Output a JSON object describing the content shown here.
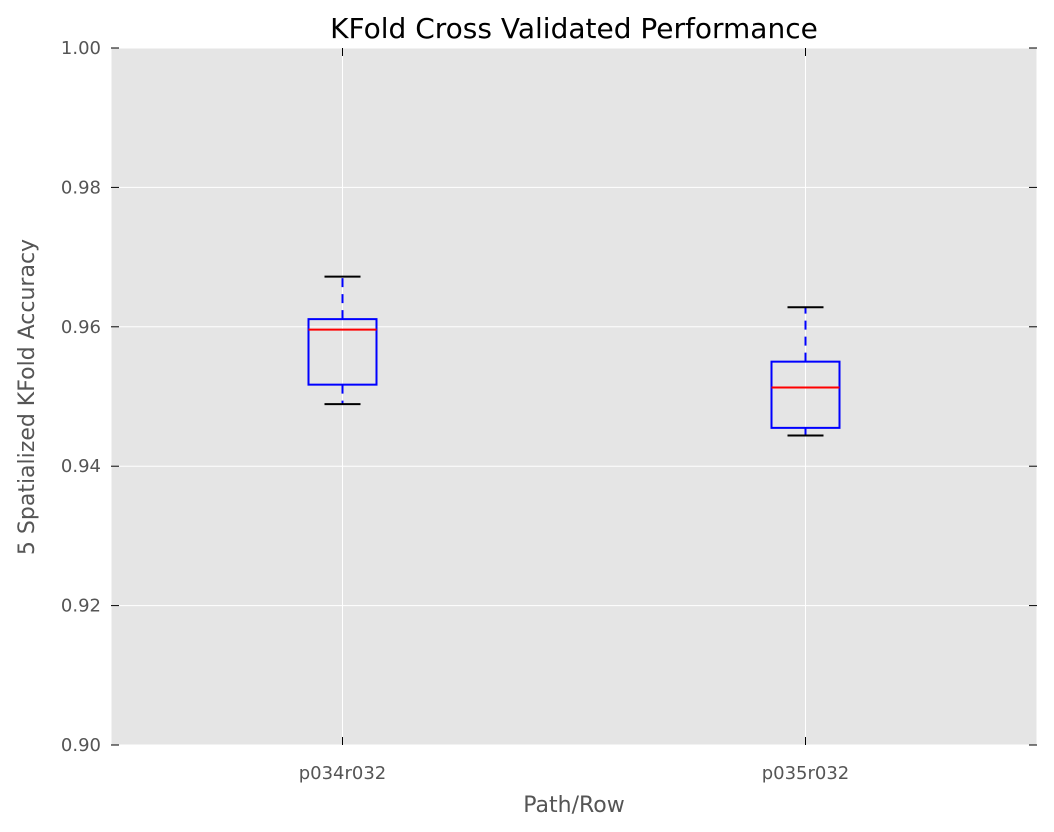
{
  "chart_data": {
    "type": "box",
    "title": "KFold Cross Validated Performance",
    "xlabel": "Path/Row",
    "ylabel": "5 Spatialized KFold Accuracy",
    "ylim": [
      0.9,
      1.0
    ],
    "yticks": [
      "0.90",
      "0.92",
      "0.94",
      "0.96",
      "0.98",
      "1.00"
    ],
    "categories": [
      "p034r032",
      "p035r032"
    ],
    "boxes": [
      {
        "category": "p034r032",
        "whisker_low": 0.9489,
        "q1": 0.9517,
        "median": 0.9596,
        "q3": 0.9611,
        "whisker_high": 0.9672
      },
      {
        "category": "p035r032",
        "whisker_low": 0.9444,
        "q1": 0.9455,
        "median": 0.9513,
        "q3": 0.955,
        "whisker_high": 0.9628
      }
    ],
    "grid": true,
    "colors": {
      "background": "#e5e5e5",
      "grid": "#ffffff",
      "box": "#0000ff",
      "median": "#ff0000",
      "cap": "#000000"
    }
  }
}
